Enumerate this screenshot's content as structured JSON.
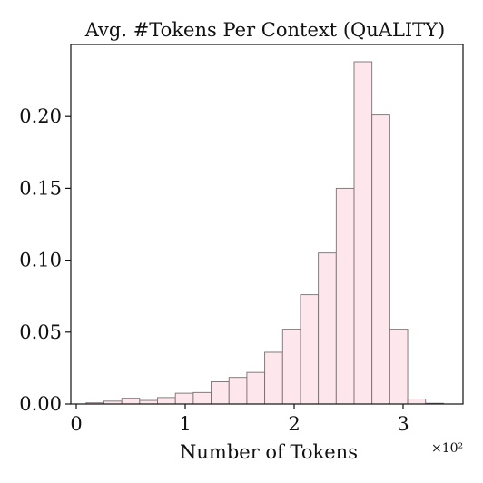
{
  "chart_data": {
    "type": "bar",
    "title": "Avg. #Tokens Per Context (QuALITY)",
    "xlabel": "Number of Tokens",
    "ylabel": "",
    "x_scale_label": "×10²",
    "xlim": [
      -0.05,
      3.55
    ],
    "ylim": [
      0,
      0.25
    ],
    "x_ticks": [
      0,
      1,
      2,
      3
    ],
    "x_tick_labels": [
      "0",
      "1",
      "2",
      "3"
    ],
    "y_ticks": [
      0.0,
      0.05,
      0.1,
      0.15,
      0.2
    ],
    "y_tick_labels": [
      "0.00",
      "0.05",
      "0.10",
      "0.15",
      "0.20"
    ],
    "grid": false,
    "legend": "none",
    "bin_width": 0.164,
    "bin_starts": [
      0.09,
      0.254,
      0.418,
      0.582,
      0.746,
      0.91,
      1.074,
      1.238,
      1.402,
      1.566,
      1.73,
      1.894,
      2.058,
      2.222,
      2.386,
      2.55,
      2.714,
      2.878,
      3.042,
      3.206
    ],
    "values": [
      0.0008,
      0.002,
      0.004,
      0.0025,
      0.0045,
      0.0075,
      0.008,
      0.0155,
      0.0185,
      0.022,
      0.036,
      0.052,
      0.076,
      0.105,
      0.15,
      0.238,
      0.201,
      0.052,
      0.0035,
      0.0005
    ],
    "colors": {
      "bar_fill": "#fde6ec",
      "bar_edge": "#7a6f73",
      "axis": "#111111"
    }
  }
}
